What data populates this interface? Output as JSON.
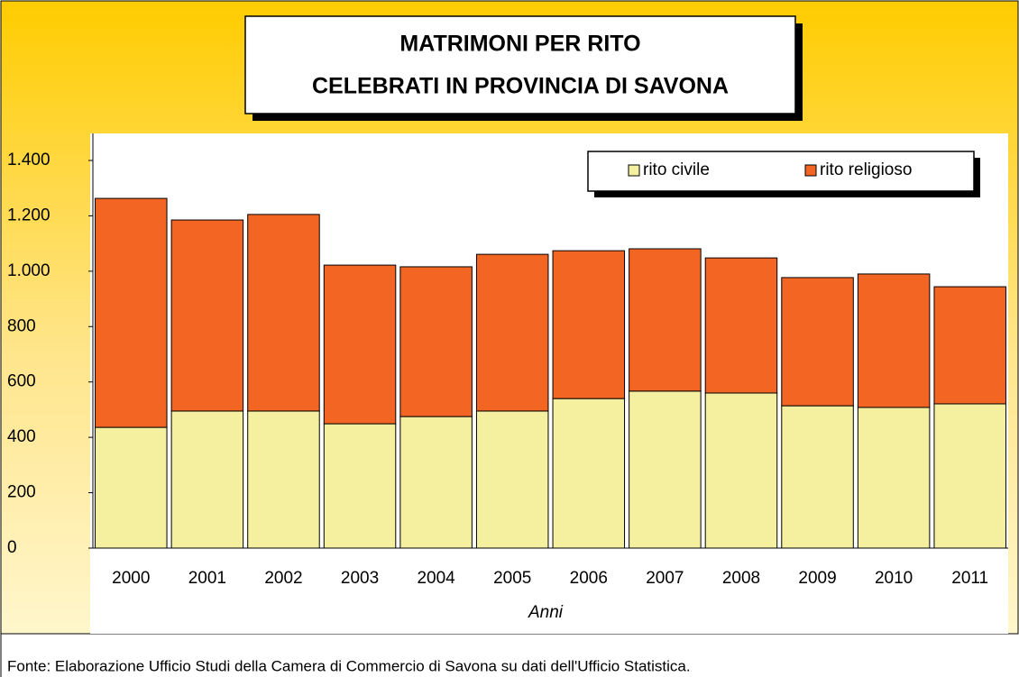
{
  "chart_data": {
    "type": "stacked_bar",
    "title": [
      "MATRIMONI PER RITO",
      "CELEBRATI IN PROVINCIA DI SAVONA"
    ],
    "x_label": "Anni",
    "source": "Fonte: Elaborazione Ufficio Studi della Camera di Commercio di Savona su dati dell'Ufficio Statistica.",
    "categories": [
      "2000",
      "2001",
      "2002",
      "2003",
      "2004",
      "2005",
      "2006",
      "2007",
      "2008",
      "2009",
      "2010",
      "2011"
    ],
    "series": [
      {
        "name": "rito civile",
        "color": "#f5f0a0",
        "values": [
          436,
          495,
          495,
          449,
          475,
          495,
          540,
          567,
          560,
          514,
          508,
          521
        ]
      },
      {
        "name": "rito religioso",
        "color": "#f26522",
        "values": [
          827,
          690,
          710,
          573,
          541,
          566,
          534,
          514,
          488,
          463,
          482,
          423
        ]
      }
    ],
    "ylim": [
      0,
      1400
    ],
    "yticks": [
      0,
      200,
      400,
      600,
      800,
      {
        "value": 1000,
        "label": "1.000"
      },
      {
        "value": 1200,
        "label": "1.200"
      },
      {
        "value": 1400,
        "label": "1.400"
      }
    ],
    "legend": "top-right"
  }
}
